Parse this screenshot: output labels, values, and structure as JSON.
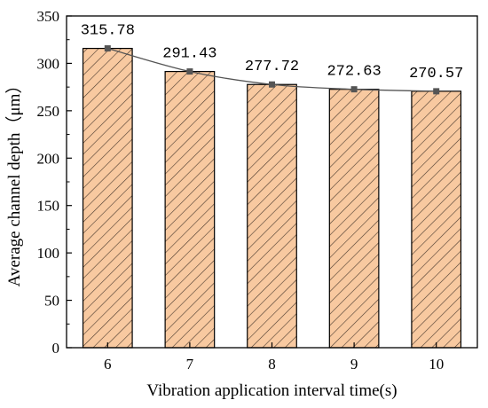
{
  "chart_data": {
    "type": "bar",
    "categories": [
      "6",
      "7",
      "8",
      "9",
      "10"
    ],
    "values": [
      315.78,
      291.43,
      277.72,
      272.63,
      270.57
    ],
    "data_labels": [
      "315.78",
      "291.43",
      "277.72",
      "272.63",
      "270.57"
    ],
    "title": "",
    "xlabel": "Vibration application interval time(s)",
    "ylabel": "Average channel depth（μm）",
    "ylim": [
      0,
      350
    ],
    "yticks": [
      0,
      50,
      100,
      150,
      200,
      250,
      300,
      350
    ],
    "overlay_line": true,
    "grid": false,
    "legend": "none",
    "colors": {
      "bar_fill": "#f8c9a0",
      "bar_hatch": "#4a3a2e",
      "bar_edge": "#000000",
      "line": "#555555",
      "marker": "#555555"
    }
  }
}
